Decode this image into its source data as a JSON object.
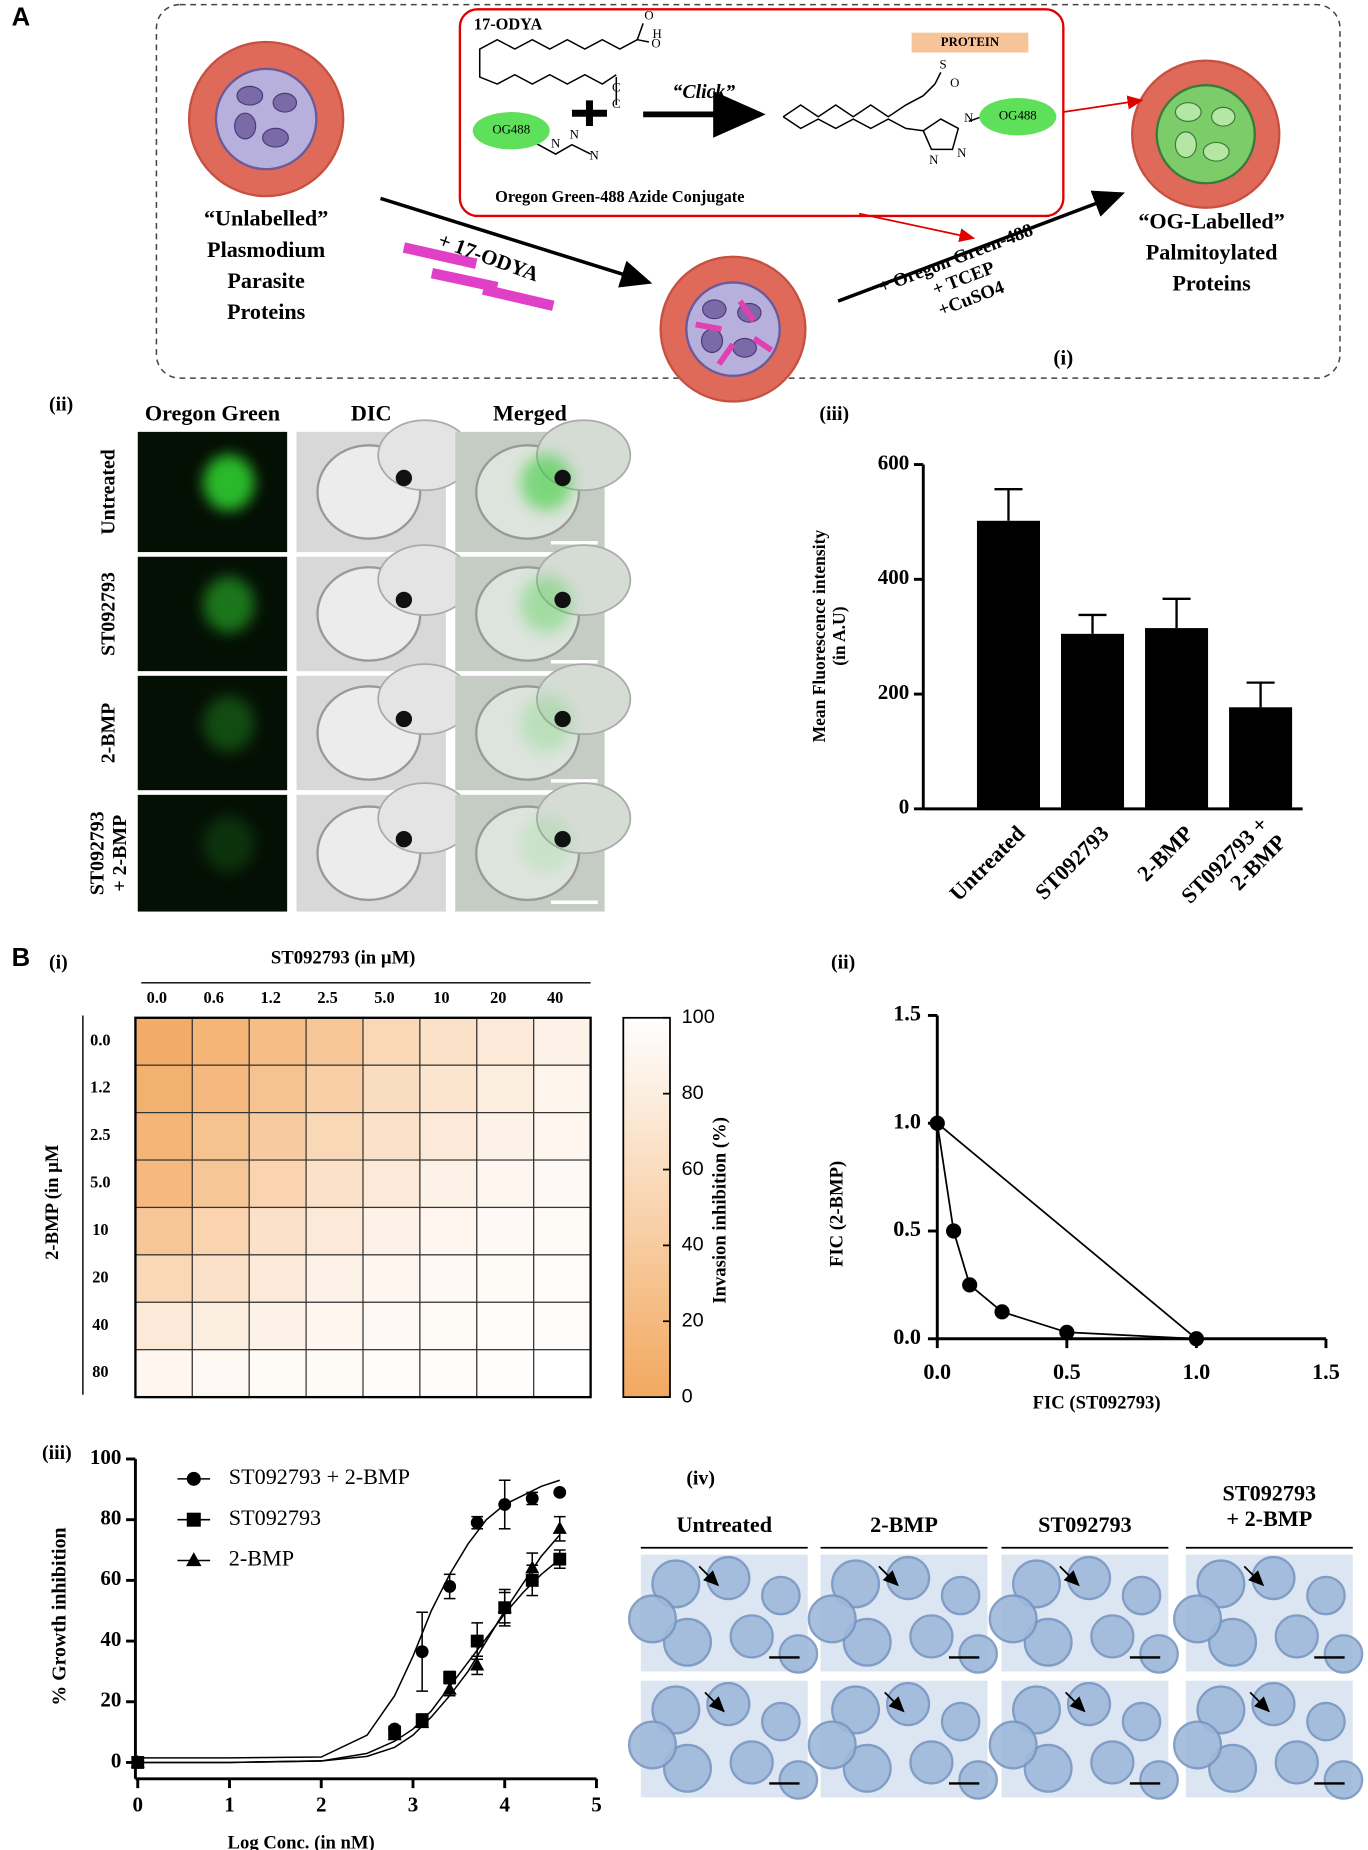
{
  "panels": {
    "a": "A",
    "a_ii": "(ii)",
    "a_iii": "(iii)",
    "b": "B",
    "b_i": "(i)",
    "b_ii": "(ii)",
    "b_iii": "(iii)",
    "b_iv": "(iv)"
  },
  "diagram": {
    "label": "(i)",
    "odya": "17-ODYA",
    "click": "“Click”",
    "protein": "PROTEIN",
    "og_left": "OG488",
    "og_right": "OG488",
    "conjugate": "Oregon Green-488 Azide Conjugate",
    "unlabelled": "“Unlabelled”\nPlasmodium\nParasite\nProteins",
    "step1": "+ 17-ODYA",
    "step2": "+ Oregon Green-488\n+ TCEP\n+CuSO4",
    "labelled": "“OG-Labelled”\nPalmitoylated\nProteins",
    "atoms": [
      "O",
      "H",
      "O",
      "C",
      "C",
      "N",
      "N",
      "N",
      "S",
      "O",
      "N",
      "N",
      "N"
    ]
  },
  "fluorescence": {
    "columns": [
      "Oregon Green",
      "DIC",
      "Merged"
    ],
    "rows": [
      "Untreated",
      "ST092793",
      "2-BMP",
      "ST092793\n+ 2-BMP"
    ]
  },
  "smears": {
    "columns": [
      "Untreated",
      "2-BMP",
      "ST092793",
      "ST092793\n+ 2-BMP"
    ]
  },
  "chart_data": [
    {
      "type": "bar",
      "categories": [
        "Untreated",
        "ST092793",
        "2-BMP",
        "ST092793 +\n2-BMP"
      ],
      "values": [
        502,
        305,
        315,
        177
      ],
      "errors": [
        55,
        33,
        51,
        43
      ],
      "color": "#000000",
      "ylabel": "Mean Fluorescence intensity\n(in A.U)",
      "ylim": [
        0,
        600
      ],
      "yticks": [
        0,
        200,
        400,
        600
      ]
    },
    {
      "type": "heatmap",
      "title": "ST092793 (in µM)",
      "ylabel": "2-BMP (in µM",
      "columns": [
        "0.0",
        "0.6",
        "1.2",
        "2.5",
        "5.0",
        "10",
        "20",
        "40"
      ],
      "rows": [
        "0.0",
        "1.2",
        "2.5",
        "5.0",
        "10",
        "20",
        "40",
        "80"
      ],
      "values": [
        [
          5,
          15,
          25,
          35,
          55,
          65,
          75,
          85
        ],
        [
          10,
          20,
          30,
          45,
          60,
          70,
          80,
          88
        ],
        [
          15,
          30,
          40,
          55,
          65,
          75,
          85,
          90
        ],
        [
          20,
          35,
          50,
          65,
          75,
          85,
          90,
          93
        ],
        [
          35,
          50,
          65,
          75,
          85,
          90,
          93,
          95
        ],
        [
          55,
          65,
          75,
          85,
          90,
          93,
          95,
          97
        ],
        [
          75,
          80,
          85,
          90,
          93,
          95,
          97,
          98
        ],
        [
          90,
          92,
          94,
          95,
          97,
          98,
          99,
          100
        ]
      ],
      "colorbar_label": "Invasion inhibition (%)",
      "zlim": [
        0,
        100
      ],
      "zticks": [
        0,
        20,
        40,
        60,
        80,
        100
      ],
      "colors": [
        "#f2a85f",
        "#ffffff"
      ]
    },
    {
      "type": "scatter",
      "x": [
        0,
        0.063,
        0.125,
        0.25,
        0.5,
        1
      ],
      "values": [
        1,
        0.5,
        0.25,
        0.125,
        0.03,
        0
      ],
      "color": "#000000",
      "xlabel": "FIC (ST092793)",
      "ylabel": "FIC (2-BMP)",
      "xlim": [
        0,
        1.5
      ],
      "ylim": [
        0,
        1.5
      ],
      "xticks": [
        {
          "value": 0,
          "label": "0.0"
        },
        0.5,
        {
          "value": 1,
          "label": "1.0"
        },
        1.5
      ],
      "yticks": [
        {
          "value": 0,
          "label": "0.0"
        },
        0.5,
        {
          "value": 1,
          "label": "1.0"
        },
        1.5
      ]
    },
    {
      "type": "line",
      "x": [
        0,
        2.8,
        3.1,
        3.4,
        3.7,
        4.0,
        4.3,
        4.6
      ],
      "series": [
        {
          "name": "ST092793 + 2-BMP",
          "marker": "circle",
          "color": "#000000",
          "values": [
            0,
            11,
            36.5,
            58,
            79,
            85,
            87,
            89
          ],
          "errors": [
            0,
            1,
            13,
            4,
            2,
            8,
            2,
            0
          ],
          "fit": {
            "x": [
              0,
              1,
              2,
              2.5,
              2.8,
              3,
              3.2,
              3.4,
              3.6,
              3.8,
              4,
              4.2,
              4.4,
              4.6
            ],
            "values": [
              1.5,
              1.5,
              1.8,
              9,
              22,
              35,
              50,
              62,
              72,
              80,
              85,
              88,
              91,
              93
            ]
          }
        },
        {
          "name": "ST092793",
          "marker": "square",
          "color": "#000000",
          "values": [
            0,
            10,
            14,
            28,
            40,
            51,
            60,
            67
          ],
          "errors": [
            0,
            1,
            2,
            2,
            6,
            6,
            5,
            3
          ],
          "fit": {
            "x": [
              0,
              1,
              2,
              2.5,
              2.8,
              3,
              3.2,
              3.4,
              3.6,
              3.8,
              4,
              4.2,
              4.4,
              4.6
            ],
            "values": [
              0,
              0,
              0.5,
              3,
              7,
              11,
              17,
              25,
              33,
              41,
              49,
              56,
              62,
              67
            ]
          }
        },
        {
          "name": "2-BMP",
          "marker": "triangle",
          "color": "#000000",
          "values": [
            0,
            9,
            13,
            24,
            32,
            51,
            64,
            77
          ],
          "errors": [
            0,
            1,
            1,
            2,
            3,
            5,
            5,
            4
          ],
          "fit": {
            "x": [
              0,
              1,
              2,
              2.5,
              2.8,
              3,
              3.2,
              3.4,
              3.6,
              3.8,
              4,
              4.2,
              4.4,
              4.6
            ],
            "values": [
              0,
              0,
              0.5,
              2,
              5,
              9,
              15,
              22,
              30,
              40,
              50,
              59,
              68,
              75
            ]
          }
        }
      ],
      "xlabel": "Log Conc. (in nM)",
      "ylabel": "% Growth inhibition",
      "xlim": [
        0,
        5
      ],
      "ylim": [
        0,
        100
      ],
      "xticks": [
        0,
        1,
        2,
        3,
        4,
        5
      ],
      "yticks": [
        0,
        20,
        40,
        60,
        80,
        100
      ]
    }
  ]
}
